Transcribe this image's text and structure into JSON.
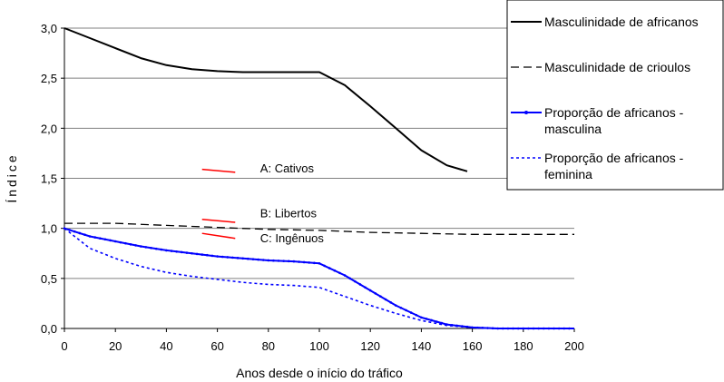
{
  "chart_data": {
    "type": "line",
    "xlabel": "Anos desde o início do tráfico",
    "ylabel": "Índice",
    "xlim": [
      0,
      200
    ],
    "ylim": [
      0,
      3
    ],
    "xticks": [
      "0",
      "20",
      "40",
      "60",
      "80",
      "100",
      "120",
      "140",
      "160",
      "180",
      "200"
    ],
    "yticks": [
      "0,0",
      "0,5",
      "1,0",
      "1,5",
      "2,0",
      "2,5",
      "3,0"
    ],
    "grid": "horizontal",
    "legend_position": "top-right",
    "series": [
      {
        "name": "Masculinidade de africanos",
        "color": "#000000",
        "style": "solid",
        "points": [
          [
            0,
            3.0
          ],
          [
            10,
            2.9
          ],
          [
            20,
            2.8
          ],
          [
            30,
            2.7
          ],
          [
            40,
            2.63
          ],
          [
            50,
            2.59
          ],
          [
            60,
            2.57
          ],
          [
            70,
            2.56
          ],
          [
            80,
            2.56
          ],
          [
            90,
            2.56
          ],
          [
            100,
            2.56
          ],
          [
            110,
            2.43
          ],
          [
            120,
            2.22
          ],
          [
            130,
            2.0
          ],
          [
            140,
            1.78
          ],
          [
            150,
            1.63
          ],
          [
            158,
            1.57
          ]
        ]
      },
      {
        "name": "Masculinidade de crioulos",
        "color": "#000000",
        "style": "dashed",
        "points": [
          [
            0,
            1.05
          ],
          [
            20,
            1.05
          ],
          [
            40,
            1.03
          ],
          [
            60,
            1.01
          ],
          [
            80,
            0.99
          ],
          [
            100,
            0.98
          ],
          [
            120,
            0.96
          ],
          [
            140,
            0.95
          ],
          [
            160,
            0.94
          ],
          [
            180,
            0.94
          ],
          [
            200,
            0.94
          ]
        ]
      },
      {
        "name": "Proporção de africanos - masculina",
        "color": "#0000ff",
        "style": "solid-marker",
        "points": [
          [
            0,
            1.0
          ],
          [
            10,
            0.92
          ],
          [
            20,
            0.87
          ],
          [
            30,
            0.82
          ],
          [
            40,
            0.78
          ],
          [
            50,
            0.75
          ],
          [
            60,
            0.72
          ],
          [
            70,
            0.7
          ],
          [
            80,
            0.68
          ],
          [
            90,
            0.67
          ],
          [
            100,
            0.65
          ],
          [
            110,
            0.53
          ],
          [
            120,
            0.38
          ],
          [
            130,
            0.23
          ],
          [
            140,
            0.11
          ],
          [
            150,
            0.04
          ],
          [
            160,
            0.01
          ],
          [
            170,
            0.0
          ],
          [
            200,
            0.0
          ]
        ]
      },
      {
        "name": "Proporção de africanos - feminina",
        "color": "#0000ff",
        "style": "dotted",
        "points": [
          [
            0,
            1.0
          ],
          [
            10,
            0.8
          ],
          [
            20,
            0.7
          ],
          [
            30,
            0.62
          ],
          [
            40,
            0.56
          ],
          [
            50,
            0.52
          ],
          [
            60,
            0.49
          ],
          [
            70,
            0.46
          ],
          [
            80,
            0.44
          ],
          [
            90,
            0.43
          ],
          [
            100,
            0.41
          ],
          [
            110,
            0.32
          ],
          [
            120,
            0.23
          ],
          [
            130,
            0.15
          ],
          [
            140,
            0.08
          ],
          [
            150,
            0.03
          ],
          [
            160,
            0.01
          ],
          [
            170,
            0.0
          ]
        ]
      }
    ],
    "annotations": [
      {
        "label": "A: Cativos",
        "x": 80,
        "y": 1.56,
        "marker": [
          [
            54,
            1.59
          ],
          [
            67,
            1.56
          ]
        ],
        "color": "#ff0000"
      },
      {
        "label": "B: Libertos",
        "x": 80,
        "y": 1.11,
        "marker": [
          [
            54,
            1.09
          ],
          [
            67,
            1.06
          ]
        ],
        "color": "#ff0000"
      },
      {
        "label": "C: Ingênuos",
        "x": 80,
        "y": 0.86,
        "marker": [
          [
            54,
            0.95
          ],
          [
            67,
            0.9
          ]
        ],
        "color": "#ff0000"
      }
    ]
  }
}
